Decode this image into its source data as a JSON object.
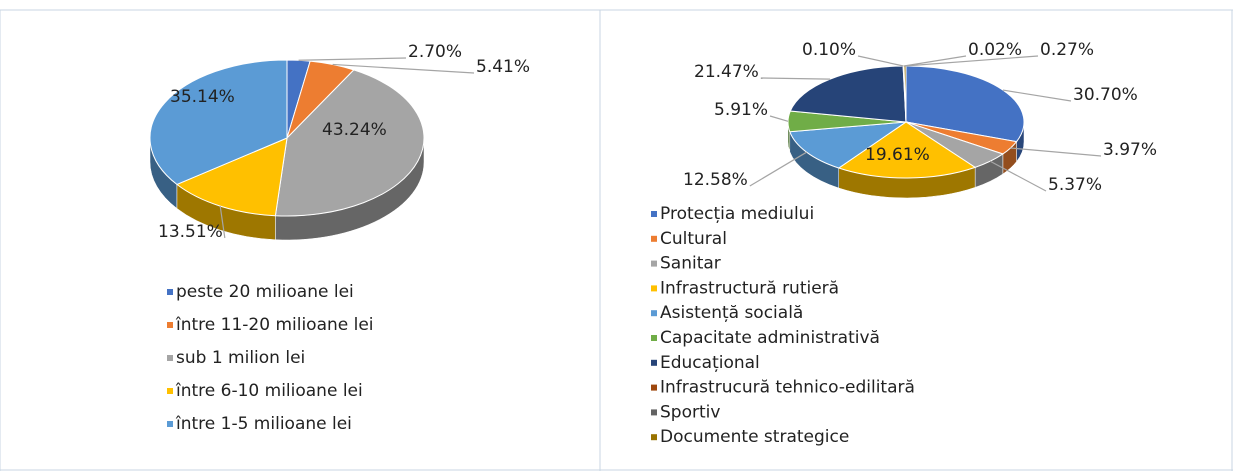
{
  "chart_data": [
    {
      "type": "pie3d",
      "categories": [
        "peste 20 milioane lei",
        "între 11-20 milioane lei",
        "sub 1 milion lei",
        "între 6-10 milioane lei",
        "între 1-5 milioane lei"
      ],
      "values": [
        2.7,
        5.41,
        43.24,
        13.51,
        35.14
      ],
      "value_labels": [
        "2.70%",
        "5.41%",
        "43.24%",
        "13.51%",
        "35.14%"
      ],
      "colors": [
        "#4472c4",
        "#ed7d31",
        "#a5a5a5",
        "#ffc000",
        "#5b9bd5"
      ],
      "legend": "bottom"
    },
    {
      "type": "pie3d",
      "categories": [
        "Protecția mediului",
        "Cultural",
        "Sanitar",
        "Infrastructură rutieră",
        "Asistență socială",
        "Capacitate administrativă",
        "Educațional",
        "Infrastrucură tehnico-edilitară",
        "Sportiv",
        "Documente strategice"
      ],
      "values": [
        30.7,
        3.97,
        5.37,
        19.61,
        12.58,
        5.91,
        21.47,
        0.1,
        0.02,
        0.27
      ],
      "value_labels": [
        "30.70%",
        "3.97%",
        "5.37%",
        "19.61%",
        "12.58%",
        "5.91%",
        "21.47%",
        "0.10%",
        "0.02%",
        "0.27%"
      ],
      "colors": [
        "#4472c4",
        "#ed7d31",
        "#a5a5a5",
        "#ffc000",
        "#5b9bd5",
        "#70ad47",
        "#264478",
        "#9e480e",
        "#636363",
        "#997300"
      ],
      "legend": "bottom"
    }
  ]
}
